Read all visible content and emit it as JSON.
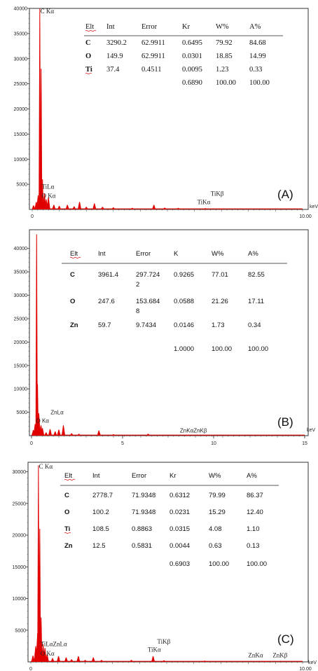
{
  "chart_data": [
    {
      "type": "bar",
      "panel_label": "(A)",
      "xunit": "keV",
      "xlim": [
        0,
        10
      ],
      "ylim": [
        0,
        40000
      ],
      "x_tick_labels": [
        "0",
        "10.00"
      ],
      "y_ticks": [
        5000,
        10000,
        15000,
        20000,
        25000,
        30000,
        35000,
        40000
      ],
      "y_tick_labels": [
        "5000",
        "10000",
        "15000",
        "20000",
        "25000",
        "30000",
        "35000",
        "40000"
      ],
      "peaks": [
        {
          "x": 0.05,
          "y": 800
        },
        {
          "x": 0.15,
          "y": 1500
        },
        {
          "x": 0.22,
          "y": 2800
        },
        {
          "x": 0.28,
          "y": 40000
        },
        {
          "x": 0.33,
          "y": 28000
        },
        {
          "x": 0.38,
          "y": 6000
        },
        {
          "x": 0.45,
          "y": 3200
        },
        {
          "x": 0.52,
          "y": 2000
        },
        {
          "x": 0.6,
          "y": 2400
        },
        {
          "x": 0.8,
          "y": 900
        },
        {
          "x": 1.0,
          "y": 700
        },
        {
          "x": 1.3,
          "y": 900
        },
        {
          "x": 1.55,
          "y": 600
        },
        {
          "x": 1.75,
          "y": 1500
        },
        {
          "x": 2.0,
          "y": 500
        },
        {
          "x": 2.3,
          "y": 1200
        },
        {
          "x": 2.6,
          "y": 500
        },
        {
          "x": 3.0,
          "y": 400
        },
        {
          "x": 3.7,
          "y": 300
        },
        {
          "x": 4.5,
          "y": 900
        },
        {
          "x": 4.9,
          "y": 350
        },
        {
          "x": 5.4,
          "y": 300
        },
        {
          "x": 6.4,
          "y": 250
        },
        {
          "x": 7.0,
          "y": 150
        },
        {
          "x": 8.6,
          "y": 100
        }
      ],
      "peak_labels": [
        {
          "text": "C Kα",
          "x": 0.3,
          "y": 39000,
          "font": "serif"
        },
        {
          "text": "TiLα",
          "x": 0.35,
          "y": 4100,
          "font": "serif"
        },
        {
          "text": "O Kα",
          "x": 0.35,
          "y": 2300,
          "font": "serif"
        },
        {
          "text": "TiKβ",
          "x": 6.6,
          "y": 2700,
          "font": "serif"
        },
        {
          "text": "TiKα",
          "x": 6.1,
          "y": 1050,
          "font": "serif"
        }
      ],
      "table": {
        "font": "serif",
        "headers": [
          "Elt",
          "Int",
          "Error",
          "Kr",
          "W%",
          "A%"
        ],
        "rows": [
          [
            "C",
            "3290.2",
            "62.9911",
            "0.6495",
            "79.92",
            "84.68"
          ],
          [
            "O",
            "149.9",
            "62.9911",
            "0.0301",
            "18.85",
            "14.99"
          ],
          [
            "Ti",
            "37.4",
            "0.4511",
            "0.0095",
            "1.23",
            "0.33"
          ]
        ],
        "total": [
          "",
          "",
          "",
          "0.6890",
          "100.00",
          "100.00"
        ]
      }
    },
    {
      "type": "bar",
      "panel_label": "(B)",
      "xunit": "keV",
      "xlim": [
        0,
        15
      ],
      "ylim": [
        0,
        44000
      ],
      "x_tick_labels": [
        "0",
        "5",
        "10",
        "15"
      ],
      "x_ticks": [
        0,
        5,
        10,
        15
      ],
      "y_ticks": [
        5000,
        10000,
        15000,
        20000,
        25000,
        30000,
        35000,
        40000
      ],
      "y_tick_labels": [
        "5000",
        "10000",
        "15000",
        "20000",
        "25000",
        "30000",
        "35000",
        "40000"
      ],
      "peaks": [
        {
          "x": 0.1,
          "y": 1200
        },
        {
          "x": 0.2,
          "y": 2500
        },
        {
          "x": 0.28,
          "y": 43000
        },
        {
          "x": 0.33,
          "y": 11000
        },
        {
          "x": 0.4,
          "y": 4800
        },
        {
          "x": 0.52,
          "y": 2200
        },
        {
          "x": 0.6,
          "y": 1600
        },
        {
          "x": 0.8,
          "y": 700
        },
        {
          "x": 1.02,
          "y": 1400
        },
        {
          "x": 1.3,
          "y": 900
        },
        {
          "x": 1.5,
          "y": 1300
        },
        {
          "x": 1.75,
          "y": 2200
        },
        {
          "x": 2.2,
          "y": 500
        },
        {
          "x": 2.6,
          "y": 400
        },
        {
          "x": 3.7,
          "y": 1100
        },
        {
          "x": 4.5,
          "y": 300
        },
        {
          "x": 6.4,
          "y": 400
        },
        {
          "x": 8.6,
          "y": 150
        },
        {
          "x": 9.6,
          "y": 100
        }
      ],
      "peak_labels": [
        {
          "text": "ZnLα",
          "x": 1.05,
          "y": 4600,
          "font": "sans"
        },
        {
          "text": "O Kα",
          "x": 0.25,
          "y": 2800,
          "font": "sans"
        },
        {
          "text": "ZnKαZnKβ",
          "x": 8.15,
          "y": 700,
          "font": "sans"
        }
      ],
      "table": {
        "font": "sans",
        "headers": [
          "Elt",
          "Int",
          "Error",
          "K",
          "W%",
          "A%"
        ],
        "rows": [
          [
            "C",
            "3961.4",
            [
              "297.724",
              "2"
            ],
            "0.9265",
            "77.01",
            "82.55"
          ],
          [
            "O",
            "247.6",
            [
              "153.684",
              "8"
            ],
            "0.0588",
            "21.26",
            "17.11"
          ],
          [
            "Zn",
            "59.7",
            "9.7434",
            "0.0146",
            "1.73",
            "0.34"
          ]
        ],
        "total": [
          "",
          "",
          "",
          "1.0000",
          "100.00",
          "100.00"
        ]
      }
    },
    {
      "type": "bar",
      "panel_label": "(C)",
      "xunit": "keV",
      "xlim": [
        0,
        10
      ],
      "ylim": [
        0,
        31500
      ],
      "x_tick_labels": [
        "0",
        "10.00"
      ],
      "y_ticks": [
        5000,
        10000,
        15000,
        20000,
        25000,
        30000
      ],
      "y_tick_labels": [
        "5000",
        "10000",
        "15000",
        "20000",
        "25000",
        "30000"
      ],
      "peaks": [
        {
          "x": 0.08,
          "y": 1000
        },
        {
          "x": 0.18,
          "y": 2500
        },
        {
          "x": 0.25,
          "y": 4500
        },
        {
          "x": 0.28,
          "y": 31000
        },
        {
          "x": 0.33,
          "y": 21000
        },
        {
          "x": 0.38,
          "y": 7000
        },
        {
          "x": 0.45,
          "y": 2800
        },
        {
          "x": 0.52,
          "y": 2200
        },
        {
          "x": 0.6,
          "y": 1200
        },
        {
          "x": 0.8,
          "y": 600
        },
        {
          "x": 1.02,
          "y": 900
        },
        {
          "x": 1.3,
          "y": 700
        },
        {
          "x": 1.5,
          "y": 400
        },
        {
          "x": 1.75,
          "y": 900
        },
        {
          "x": 2.0,
          "y": 300
        },
        {
          "x": 2.3,
          "y": 700
        },
        {
          "x": 2.6,
          "y": 300
        },
        {
          "x": 3.7,
          "y": 300
        },
        {
          "x": 4.5,
          "y": 900
        },
        {
          "x": 4.9,
          "y": 250
        },
        {
          "x": 6.4,
          "y": 200
        },
        {
          "x": 8.6,
          "y": 100
        }
      ],
      "peak_labels": [
        {
          "text": "C Kα",
          "x": 0.3,
          "y": 30500,
          "font": "serif"
        },
        {
          "text": "TiLαZnLα",
          "x": 0.35,
          "y": 2500,
          "font": "serif"
        },
        {
          "text": "O Kα",
          "x": 0.35,
          "y": 1000,
          "font": "serif"
        },
        {
          "text": "TiKβ",
          "x": 4.65,
          "y": 2900,
          "font": "serif"
        },
        {
          "text": "TiKα",
          "x": 4.3,
          "y": 1600,
          "font": "serif"
        },
        {
          "text": "ZnKα",
          "x": 8.0,
          "y": 700,
          "font": "serif"
        },
        {
          "text": "ZnKβ",
          "x": 8.9,
          "y": 700,
          "font": "serif"
        }
      ],
      "table": {
        "font": "sans",
        "headers": [
          "Elt",
          "Int",
          "Error",
          "Kr",
          "W%",
          "A%"
        ],
        "rows": [
          [
            "C",
            "2778.7",
            "71.9348",
            "0.6312",
            "79.99",
            "86.37"
          ],
          [
            "O",
            "100.2",
            "71.9348",
            "0.0231",
            "15.29",
            "12.40"
          ],
          [
            "Ti",
            "108.5",
            "0.8863",
            "0.0315",
            "4.08",
            "1.10"
          ],
          [
            "Zn",
            "12.5",
            "0.5831",
            "0.0044",
            "0.63",
            "0.13"
          ]
        ],
        "total": [
          "",
          "",
          "",
          "0.6903",
          "100.00",
          "100.00"
        ]
      }
    }
  ]
}
